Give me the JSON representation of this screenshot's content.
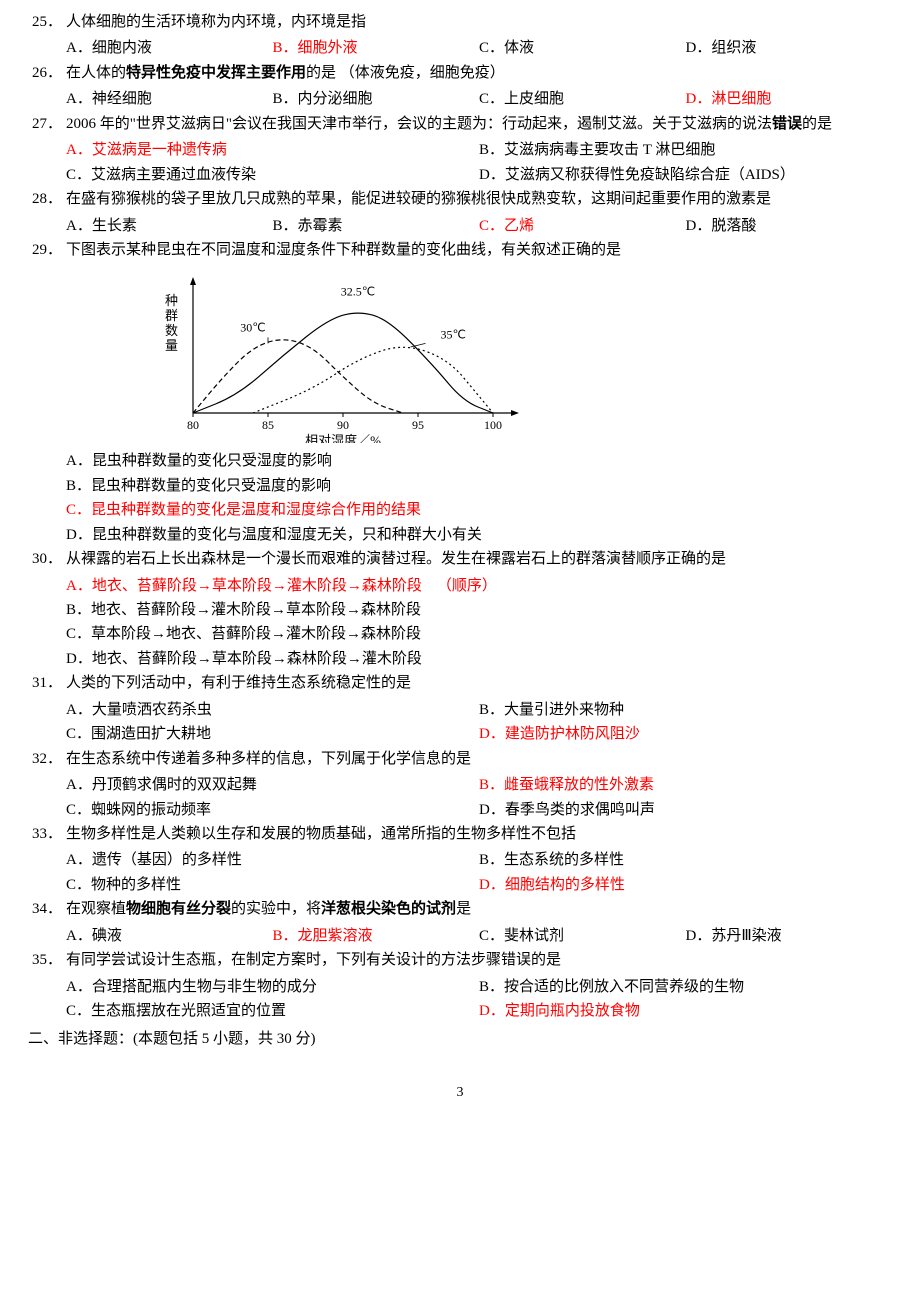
{
  "q25": {
    "num": "25．",
    "text": "人体细胞的生活环境称为内环境，内环境是指",
    "opts": [
      "A．细胞内液",
      "B．细胞外液",
      "C．体液",
      "D．组织液"
    ],
    "correct": 1
  },
  "q26": {
    "num": "26．",
    "text_pre": "在人体的",
    "text_bold": "特异性免疫中发挥主要作用",
    "text_post": "的是 （体液免疫，细胞免疫）",
    "opts": [
      "A．神经细胞",
      "B．内分泌细胞",
      "C．上皮细胞",
      "D．淋巴细胞"
    ],
    "correct": 3
  },
  "q27": {
    "num": "27．",
    "text_pre": "2006 年的\"世界艾滋病日\"会议在我国天津市举行，会议的主题为：行动起来，遏制艾滋。关于艾滋病的说法",
    "text_bold": "错误",
    "text_post": "的是",
    "opts": [
      "A．艾滋病是一种遗传病",
      "B．艾滋病病毒主要攻击 T 淋巴细胞",
      "C．艾滋病主要通过血液传染",
      "D．艾滋病又称获得性免疫缺陷综合症（AIDS）"
    ],
    "correct": 0
  },
  "q28": {
    "num": "28．",
    "text": "在盛有猕猴桃的袋子里放几只成熟的苹果，能促进较硬的猕猴桃很快成熟变软，这期间起重要作用的激素是",
    "opts": [
      "A．生长素",
      "B．赤霉素",
      "C．乙烯",
      "D．脱落酸"
    ],
    "correct": 2
  },
  "q29": {
    "num": "29．",
    "text": "下图表示某种昆虫在不同温度和湿度条件下种群数量的变化曲线，有关叙述正确的是",
    "chart": {
      "ylabel": "种群数量",
      "xlabel": "相对湿度／%",
      "xticks": [
        "80",
        "85",
        "90",
        "95",
        "100"
      ],
      "curve_labels": {
        "left": "30℃",
        "mid": "32.5℃",
        "right": "35℃"
      },
      "stroke": "#000000",
      "chart_bg": "#ffffff",
      "curve30": [
        [
          80,
          0
        ],
        [
          82,
          30
        ],
        [
          84,
          55
        ],
        [
          86,
          63
        ],
        [
          88,
          55
        ],
        [
          90,
          30
        ],
        [
          92,
          8
        ],
        [
          94,
          0
        ]
      ],
      "curve325": [
        [
          80,
          0
        ],
        [
          83,
          15
        ],
        [
          86,
          48
        ],
        [
          89,
          78
        ],
        [
          91,
          85
        ],
        [
          93,
          78
        ],
        [
          96,
          40
        ],
        [
          98,
          10
        ],
        [
          100,
          0
        ]
      ],
      "curve35": [
        [
          84,
          0
        ],
        [
          88,
          20
        ],
        [
          91,
          45
        ],
        [
          94,
          58
        ],
        [
          97,
          45
        ],
        [
          99,
          15
        ],
        [
          100,
          0
        ]
      ]
    },
    "opts": [
      "A．昆虫种群数量的变化只受湿度的影响",
      "B．昆虫种群数量的变化只受温度的影响",
      "C．昆虫种群数量的变化是温度和湿度综合作用的结果",
      "D．昆虫种群数量的变化与温度和湿度无关，只和种群大小有关"
    ],
    "correct": 2
  },
  "q30": {
    "num": "30．",
    "text": "从裸露的岩石上长出森林是一个漫长而艰难的演替过程。发生在裸露岩石上的群落演替顺序正确的是",
    "opts": [
      "A．地衣、苔藓阶段→草本阶段→灌木阶段→森林阶段",
      "B．地衣、苔藓阶段→灌木阶段→草本阶段→森林阶段",
      "C．草本阶段→地衣、苔藓阶段→灌木阶段→森林阶段",
      "D．地衣、苔藓阶段→草本阶段→森林阶段→灌木阶段"
    ],
    "opt_note": "（顺序）",
    "correct": 0
  },
  "q31": {
    "num": "31．",
    "text": "人类的下列活动中，有利于维持生态系统稳定性的是",
    "opts": [
      "A．大量喷洒农药杀虫",
      "B．大量引进外来物种",
      "C．围湖造田扩大耕地",
      "D．建造防护林防风阻沙"
    ],
    "correct": 3
  },
  "q32": {
    "num": "32．",
    "text": "在生态系统中传递着多种多样的信息，下列属于化学信息的是",
    "opts": [
      "A．丹顶鹤求偶时的双双起舞",
      "B．雌蚕蛾释放的性外激素",
      "C．蜘蛛网的振动频率",
      "D．春季鸟类的求偶鸣叫声"
    ],
    "correct": 1
  },
  "q33": {
    "num": "33．",
    "text": "生物多样性是人类赖以生存和发展的物质基础，通常所指的生物多样性不包括",
    "opts": [
      "A．遗传（基因）的多样性",
      "B．生态系统的多样性",
      "C．物种的多样性",
      "D．细胞结构的多样性"
    ],
    "correct": 3
  },
  "q34": {
    "num": "34．",
    "text_pre": "在观察植",
    "text_bold1": "物细胞有丝分裂",
    "text_mid": "的实验中，将",
    "text_bold2": "洋葱根尖染色的试剂",
    "text_post": "是",
    "opts": [
      "A．碘液",
      "B．龙胆紫溶液",
      "C．斐林试剂",
      "D．苏丹Ⅲ染液"
    ],
    "correct": 1
  },
  "q35": {
    "num": "35．",
    "text": "有同学尝试设计生态瓶，在制定方案时，下列有关设计的方法步骤错误的是",
    "opts": [
      "A．合理搭配瓶内生物与非生物的成分",
      "B．按合适的比例放入不同营养级的生物",
      "C．生态瓶摆放在光照适宜的位置",
      "D．定期向瓶内投放食物"
    ],
    "correct": 3
  },
  "section2": "二、非选择题：(本题包括 5 小题，共 30 分)",
  "page_number": "3"
}
